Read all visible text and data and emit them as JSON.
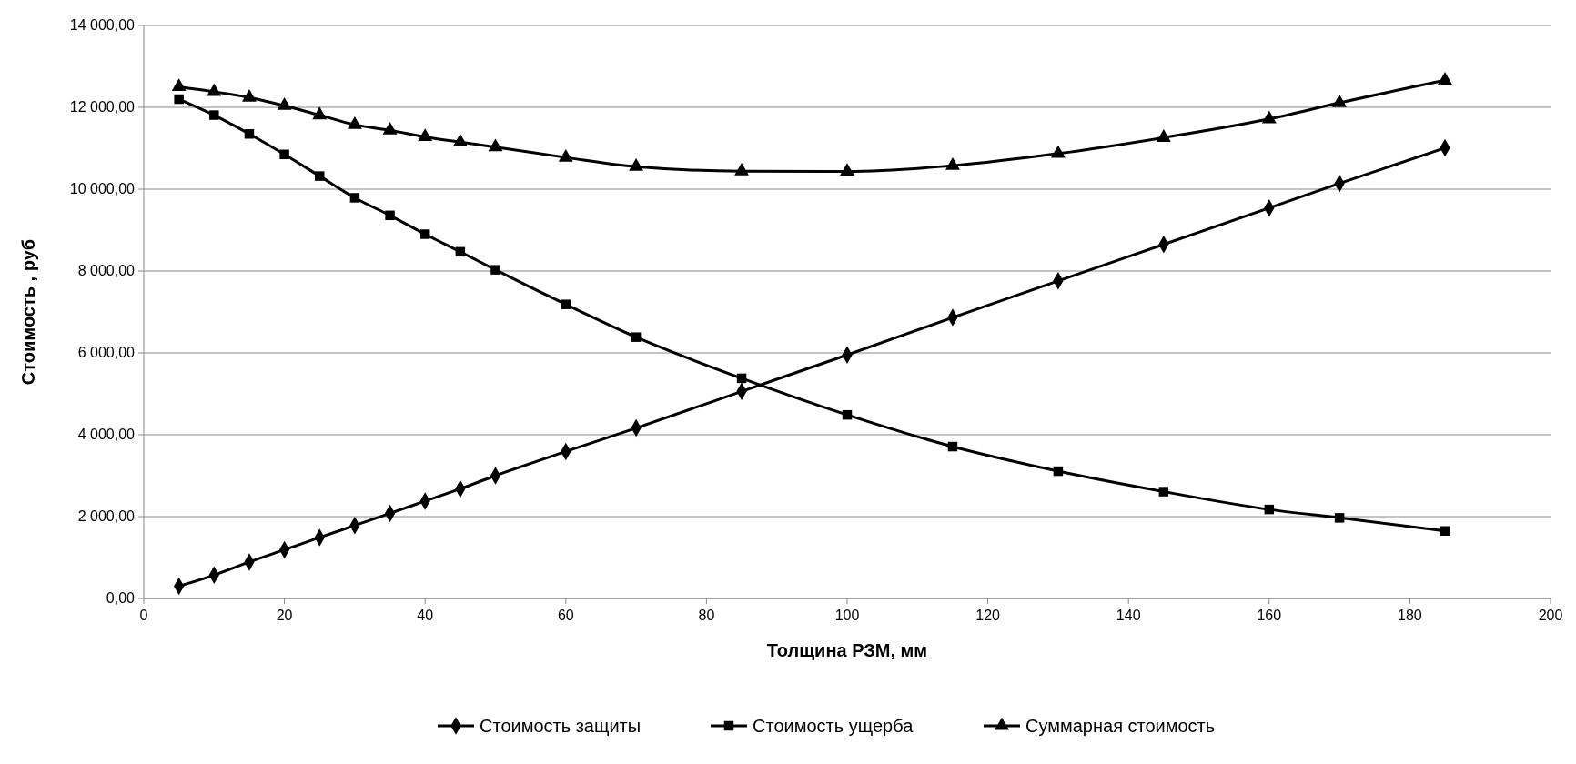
{
  "chart_data": {
    "type": "line",
    "xlabel": "Толщина РЗМ, мм",
    "ylabel": "Стоимость , руб",
    "x": [
      5,
      10,
      15,
      20,
      25,
      30,
      35,
      40,
      45,
      50,
      60,
      70,
      85,
      100,
      115,
      130,
      145,
      160,
      170,
      185
    ],
    "series": [
      {
        "name": "Стоимость защиты",
        "color": "#000000",
        "marker": "diamond",
        "values": [
          300,
          570,
          890,
          1190,
          1490,
          1785,
          2080,
          2380,
          2680,
          3000,
          3590,
          4165,
          5060,
          5950,
          6865,
          7760,
          8650,
          9540,
          10140,
          11010
        ]
      },
      {
        "name": "Стоимость ущерба",
        "color": "#000000",
        "marker": "square",
        "values": [
          12200,
          11810,
          11350,
          10850,
          10320,
          9790,
          9360,
          8900,
          8470,
          8030,
          7185,
          6385,
          5380,
          4485,
          3710,
          3110,
          2610,
          2175,
          1970,
          1650
        ]
      },
      {
        "name": "Суммарная стоимость",
        "color": "#000000",
        "marker": "triangle",
        "values": [
          12500,
          12380,
          12240,
          12040,
          11810,
          11575,
          11440,
          11280,
          11150,
          11030,
          10775,
          10550,
          10440,
          10435,
          10575,
          10870,
          11260,
          11715,
          12110,
          12660
        ]
      }
    ],
    "xlim": [
      0,
      200
    ],
    "xticks": [
      0,
      20,
      40,
      60,
      80,
      100,
      120,
      140,
      160,
      180,
      200
    ],
    "ylim": [
      0,
      14000
    ],
    "yticks": [
      {
        "value": 0,
        "label": "0,00"
      },
      {
        "value": 2000,
        "label": "2 000,00"
      },
      {
        "value": 4000,
        "label": "4 000,00"
      },
      {
        "value": 6000,
        "label": "6 000,00"
      },
      {
        "value": 8000,
        "label": "8 000,00"
      },
      {
        "value": 10000,
        "label": "10 000,00"
      },
      {
        "value": 12000,
        "label": "12 000,00"
      },
      {
        "value": 14000,
        "label": "14 000,00"
      }
    ],
    "grid": "y",
    "legend": "bottom",
    "line_style": "solid"
  }
}
